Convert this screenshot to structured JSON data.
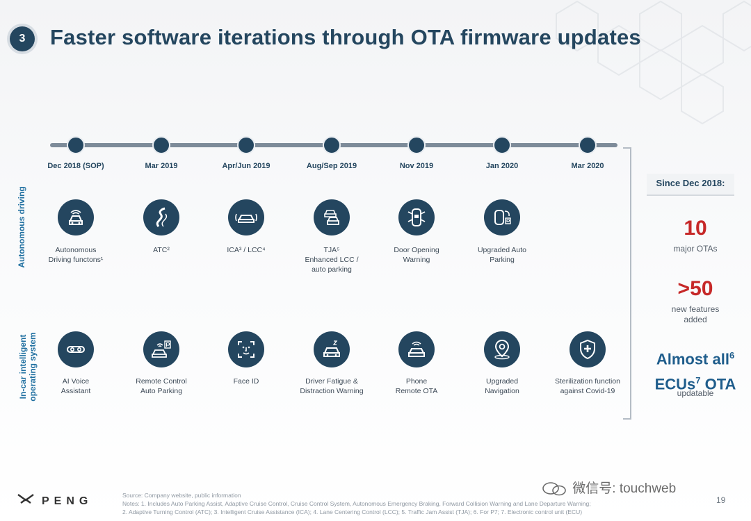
{
  "slide": {
    "number": "3",
    "title": "Faster software iterations through OTA firmware updates",
    "page": "19"
  },
  "timeline": [
    {
      "date": "Dec 2018 (SOP)"
    },
    {
      "date": "Mar 2019"
    },
    {
      "date": "Apr/Jun 2019"
    },
    {
      "date": "Aug/Sep 2019"
    },
    {
      "date": "Nov 2019"
    },
    {
      "date": "Jan 2020"
    },
    {
      "date": "Mar 2020"
    }
  ],
  "rows": {
    "autonomous_label": "Autonomous driving",
    "incar_label": "In-car intelligent operating system"
  },
  "autonomous": [
    {
      "label": "Autonomous\nDriving functons¹",
      "icon": "autonomous-driving-icon"
    },
    {
      "label": "ATC²",
      "icon": "winding-road-icon"
    },
    {
      "label": "ICA³ / LCC⁴",
      "icon": "car-lane-icon"
    },
    {
      "label": "TJA⁵\nEnhanced LCC /\nauto parking",
      "icon": "traffic-jam-icon"
    },
    {
      "label": "Door Opening\nWarning",
      "icon": "car-door-icon"
    },
    {
      "label": "Upgraded Auto\nParking",
      "icon": "auto-parking-icon"
    }
  ],
  "incar": [
    {
      "label": "AI Voice\nAssistant",
      "icon": "voice-assistant-icon"
    },
    {
      "label": "Remote Control\nAuto Parking",
      "icon": "remote-parking-icon"
    },
    {
      "label": "Face ID",
      "icon": "face-id-icon"
    },
    {
      "label": "Driver Fatigue &\nDistraction Warning",
      "icon": "driver-fatigue-icon"
    },
    {
      "label": "Phone\nRemote OTA",
      "icon": "phone-remote-icon"
    },
    {
      "label": "Upgraded\nNavigation",
      "icon": "navigation-pin-icon"
    },
    {
      "label": "Sterilization function\nagainst Covid-19",
      "icon": "sterilization-shield-icon"
    }
  ],
  "stats": {
    "since": "Since Dec 2018:",
    "otas_value": "10",
    "otas_label": "major OTAs",
    "features_value": ">50",
    "features_label": "new features\nadded",
    "ecus_line1": "Almost all",
    "ecus_sup1": "6",
    "ecus_line2a": "ECUs",
    "ecus_sup2": "7",
    "ecus_line2b": " OTA",
    "ecus_label": "updatable"
  },
  "footer": {
    "logo": "PENG",
    "source": "Source: Company website, public information",
    "notes1": "Notes: 1. Includes Auto Parking Assist, Adaptive Cruise Control, Cruise Control System, Autonomous Emergency Braking, Forward Collision Warning and Lane Departure Warning;",
    "notes2": "2. Adaptive Turning Control (ATC);  3. Intelligent Cruise Assistance (ICA);  4. Lane Centering Control (LCC);  5. Traffic Jam Assist (TJA); 6. For P7; 7. Electronic control unit (ECU)",
    "watermark": "微信号: touchweb"
  },
  "colors": {
    "navy": "#24465f",
    "red": "#c62828",
    "blue": "#1f5d8c"
  }
}
